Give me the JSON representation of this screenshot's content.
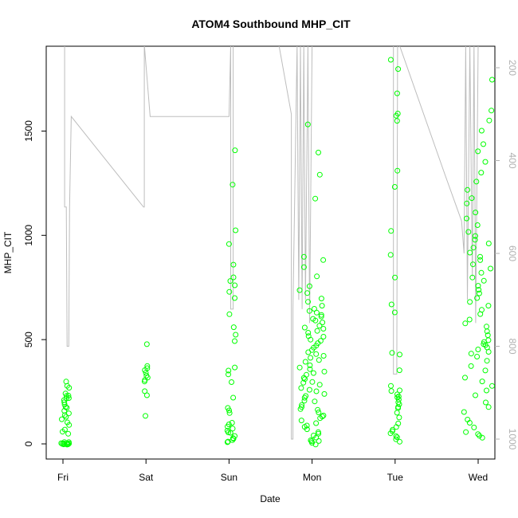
{
  "chart_data": {
    "type": "scatter",
    "title": "ATOM4 Southbound MHP_CIT",
    "xlabel": "Date",
    "ylabel": "MHP_CIT",
    "categories": [
      "Fri",
      "Sat",
      "Sun",
      "Mon",
      "Tue",
      "Wed"
    ],
    "ylim": [
      0,
      1900
    ],
    "yticks": [
      0,
      500,
      1000,
      1500
    ],
    "y2_ticks": [
      200,
      400,
      600,
      800,
      1000
    ],
    "y2_lim": [
      1050,
      140
    ],
    "grid": false,
    "colors": {
      "points": "#00ff00",
      "line": "#bdbdbd",
      "right_axis": "#b0b0b0"
    },
    "series": [
      {
        "type": "points",
        "clusters": [
          {
            "day": 0.03,
            "spread": 0.05,
            "values": [
              0,
              0,
              0,
              0,
              0,
              0,
              0,
              0,
              0,
              0,
              0,
              0,
              0,
              0,
              5,
              10,
              50,
              60,
              70,
              90,
              100,
              120,
              130,
              140,
              150,
              160,
              170,
              180,
              190,
              200,
              210,
              220,
              220,
              230,
              230,
              240,
              270,
              280,
              300
            ]
          },
          {
            "day": 1.0,
            "spread": 0.02,
            "values": [
              135,
              230,
              250,
              300,
              310,
              320,
              330,
              340,
              350,
              360,
              370,
              480
            ]
          },
          {
            "day": 2.03,
            "spread": 0.05,
            "values": [
              10,
              15,
              20,
              25,
              30,
              40,
              50,
              55,
              60,
              70,
              80,
              90,
              100,
              150,
              160,
              170,
              220,
              300,
              330,
              350,
              370,
              490,
              520,
              560,
              620,
              700,
              730,
              760,
              780,
              800,
              860,
              960,
              1020,
              1240,
              1410
            ]
          },
          {
            "day": 3.0,
            "spread": 0.15,
            "values": [
              0,
              5,
              10,
              15,
              20,
              30,
              40,
              50,
              60,
              70,
              80,
              90,
              100,
              110,
              120,
              130,
              140,
              150,
              160,
              170,
              180,
              190,
              200,
              210,
              220,
              230,
              240,
              250,
              260,
              270,
              280,
              290,
              300,
              310,
              320,
              330,
              340,
              350,
              360,
              370,
              380,
              390,
              400,
              410,
              420,
              430,
              440,
              450,
              460,
              470,
              480,
              490,
              500,
              510,
              520,
              530,
              540,
              550,
              560,
              570,
              580,
              590,
              600,
              610,
              620,
              630,
              640,
              650,
              660,
              680,
              700,
              720,
              740,
              760,
              800,
              850,
              880,
              900,
              1180,
              1290,
              1400,
              1530
            ]
          },
          {
            "day": 4.0,
            "spread": 0.06,
            "values": [
              10,
              20,
              30,
              40,
              50,
              60,
              70,
              80,
              100,
              130,
              150,
              170,
              180,
              190,
              200,
              210,
              220,
              230,
              240,
              250,
              260,
              280,
              350,
              430,
              440,
              630,
              670,
              800,
              910,
              1020,
              1230,
              1310,
              1550,
              1570,
              1580,
              1680,
              1800,
              1840
            ]
          },
          {
            "day": 5.0,
            "spread": 0.17,
            "values": [
              30,
              40,
              50,
              60,
              80,
              100,
              120,
              150,
              180,
              200,
              230,
              260,
              280,
              300,
              320,
              350,
              370,
              400,
              420,
              430,
              440,
              450,
              460,
              470,
              480,
              490,
              500,
              520,
              540,
              560,
              580,
              600,
              620,
              640,
              660,
              680,
              700,
              720,
              740,
              760,
              780,
              800,
              820,
              840,
              860,
              880,
              900,
              920,
              940,
              960,
              980,
              1000,
              1020,
              1050,
              1080,
              1110,
              1150,
              1180,
              1220,
              1260,
              1300,
              1350,
              1400,
              1440,
              1500,
              1550,
              1600,
              1750
            ]
          }
        ]
      },
      {
        "type": "line",
        "name": "",
        "note": "right axis values (inverted scale)",
        "points": [
          [
            0.02,
            140
          ],
          [
            0.02,
            500
          ],
          [
            0.04,
            500
          ],
          [
            0.05,
            800
          ],
          [
            0.07,
            800
          ],
          [
            0.08,
            500
          ],
          [
            0.1,
            305
          ],
          [
            0.97,
            500
          ],
          [
            0.98,
            500
          ],
          [
            0.98,
            140
          ],
          [
            1.05,
            305
          ],
          [
            2.0,
            305
          ],
          [
            2.02,
            140
          ],
          [
            2.02,
            720
          ],
          [
            2.05,
            720
          ],
          [
            2.05,
            140
          ],
          [
            2.1,
            140
          ],
          [
            2.6,
            140
          ],
          [
            2.75,
            300
          ],
          [
            2.75,
            1000
          ],
          [
            2.77,
            1000
          ],
          [
            2.77,
            720
          ],
          [
            2.82,
            140
          ],
          [
            2.84,
            700
          ],
          [
            2.86,
            140
          ],
          [
            2.88,
            720
          ],
          [
            2.9,
            140
          ],
          [
            2.92,
            700
          ],
          [
            2.95,
            140
          ],
          [
            2.97,
            750
          ],
          [
            3.0,
            140
          ],
          [
            3.98,
            140
          ],
          [
            3.98,
            860
          ],
          [
            4.02,
            860
          ],
          [
            4.03,
            140
          ],
          [
            4.05,
            140
          ],
          [
            4.6,
            430
          ],
          [
            4.8,
            530
          ],
          [
            4.83,
            600
          ],
          [
            4.85,
            140
          ],
          [
            4.87,
            700
          ],
          [
            4.9,
            140
          ],
          [
            4.93,
            650
          ],
          [
            4.95,
            140
          ],
          [
            4.97,
            750
          ],
          [
            5.0,
            140
          ]
        ]
      }
    ]
  }
}
